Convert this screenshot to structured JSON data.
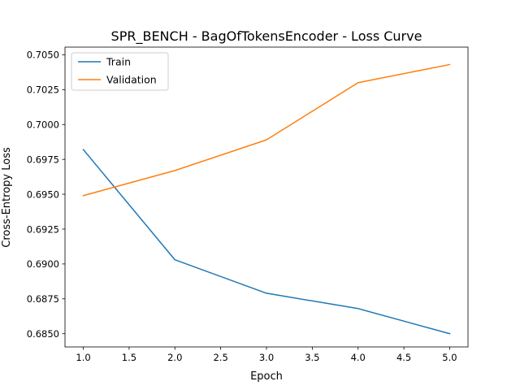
{
  "chart_data": {
    "type": "line",
    "title": "SPR_BENCH - BagOfTokensEncoder - Loss Curve",
    "xlabel": "Epoch",
    "ylabel": "Cross-Entropy Loss",
    "x": [
      1,
      2,
      3,
      4,
      5
    ],
    "xlim": [
      0.8,
      5.2
    ],
    "ylim": [
      0.68405,
      0.70555
    ],
    "xticks": [
      1.0,
      1.5,
      2.0,
      2.5,
      3.0,
      3.5,
      4.0,
      4.5,
      5.0
    ],
    "xtick_labels": [
      "1.0",
      "1.5",
      "2.0",
      "2.5",
      "3.0",
      "3.5",
      "4.0",
      "4.5",
      "5.0"
    ],
    "yticks": [
      0.685,
      0.6875,
      0.69,
      0.6925,
      0.695,
      0.6975,
      0.7,
      0.7025,
      0.705
    ],
    "ytick_labels": [
      "0.6850",
      "0.6875",
      "0.6900",
      "0.6925",
      "0.6950",
      "0.6975",
      "0.7000",
      "0.7025",
      "0.7050"
    ],
    "grid": false,
    "legend_position": "top-left",
    "series": [
      {
        "name": "Train",
        "color": "#1f77b4",
        "values": [
          0.6982,
          0.6903,
          0.6879,
          0.6868,
          0.685
        ]
      },
      {
        "name": "Validation",
        "color": "#ff7f0e",
        "values": [
          0.6949,
          0.6967,
          0.6989,
          0.703,
          0.7043
        ]
      }
    ]
  }
}
